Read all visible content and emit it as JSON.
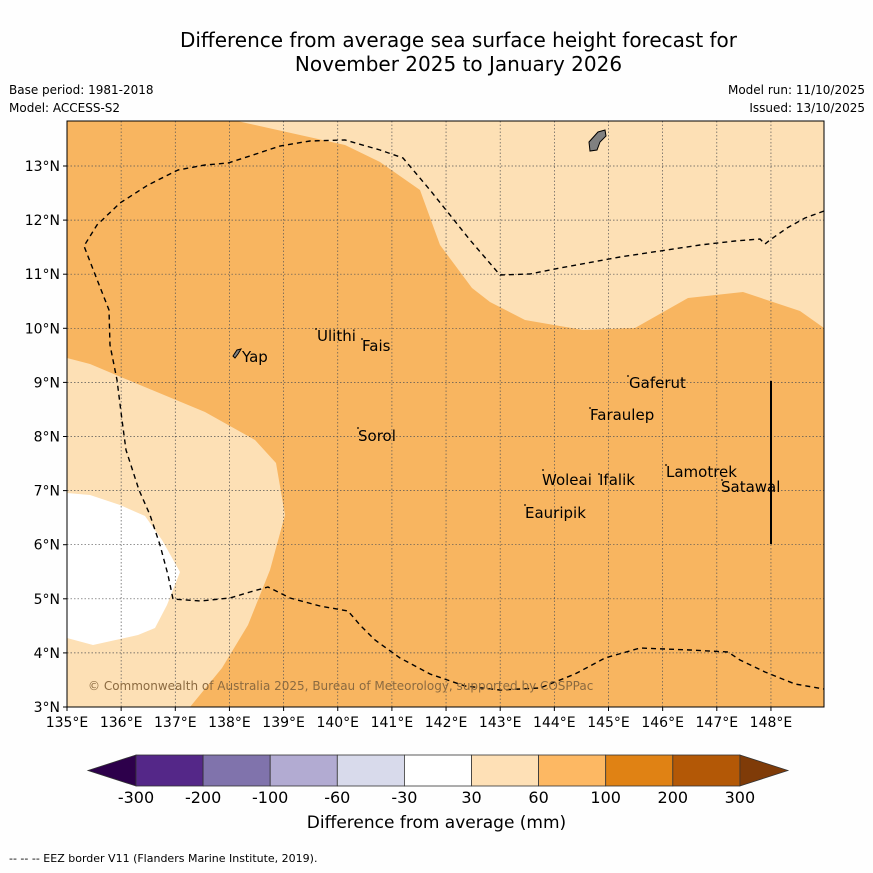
{
  "title": {
    "line1": "Difference from average sea surface height forecast for",
    "line2": "November 2025 to January 2026"
  },
  "meta": {
    "base_period": "Base period: 1981-2018",
    "model": "Model: ACCESS-S2",
    "model_run": "Model run: 11/10/2025",
    "issued": "Issued: 13/10/2025"
  },
  "map": {
    "x_ticks": [
      "135°E",
      "136°E",
      "137°E",
      "138°E",
      "139°E",
      "140°E",
      "141°E",
      "142°E",
      "143°E",
      "144°E",
      "145°E",
      "146°E",
      "147°E",
      "148°E"
    ],
    "y_ticks": [
      "3°N",
      "4°N",
      "5°N",
      "6°N",
      "7°N",
      "8°N",
      "9°N",
      "10°N",
      "11°N",
      "12°N",
      "13°N"
    ],
    "places": [
      "Yap",
      "Ulithi",
      "Fais",
      "Sorol",
      "Gaferut",
      "Faraulep",
      "Woleai",
      "Ifalik",
      "Eauripik",
      "Lamotrek",
      "Satawal"
    ],
    "copyright": "© Commonwealth of Australia 2025, Bureau of Meteorology, supported by COSPPac",
    "colors": {
      "c30_60": "#fde0b5",
      "c60_100": "#f8b560",
      "cneutral": "#ffffff",
      "land": "#808080"
    }
  },
  "colorbar": {
    "tick_labels": [
      "-300",
      "-200",
      "-100",
      "-60",
      "-30",
      "30",
      "60",
      "100",
      "200",
      "300"
    ],
    "colors": [
      "#2d004b",
      "#542788",
      "#8073ac",
      "#b2abd2",
      "#d8daeb",
      "#ffffff",
      "#fee0b6",
      "#fdb863",
      "#e08214",
      "#b35806",
      "#7f3b08"
    ],
    "title": "Difference from average (mm)"
  },
  "footer": "--  --  -- EEZ border V11 (Flanders Marine Institute, 2019)."
}
